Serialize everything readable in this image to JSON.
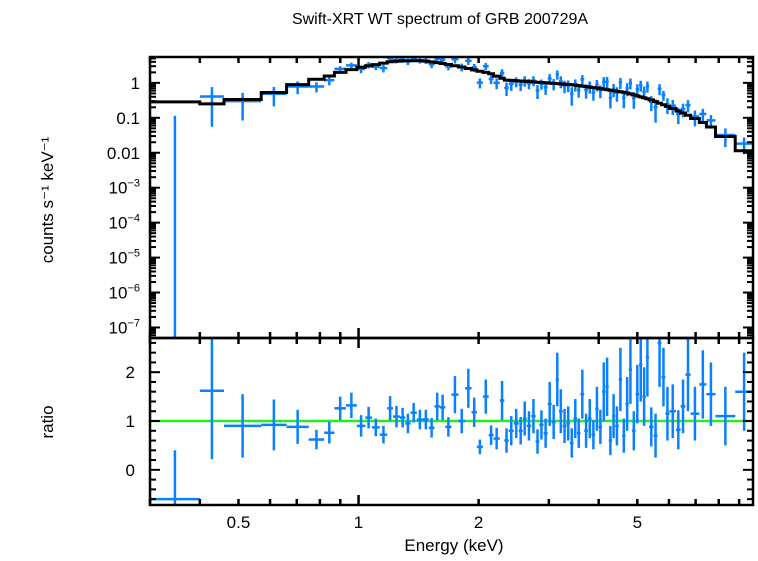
{
  "chart_data": [
    {
      "type": "scatter",
      "panel": "spectrum",
      "title": "Swift-XRT WT spectrum of GRB 200729A",
      "xlabel": "Energy (keV)",
      "ylabel": "counts s⁻¹ keV⁻¹",
      "x_scale": "log",
      "y_scale": "log",
      "xlim": [
        0.3,
        9.75
      ],
      "ylim": [
        5e-08,
        5.5
      ],
      "yticks": [
        {
          "value": 1,
          "base": "1",
          "exp": ""
        },
        {
          "value": 0.1,
          "base": "0.1",
          "exp": ""
        },
        {
          "value": 0.01,
          "base": "0.01",
          "exp": ""
        },
        {
          "value": 0.001,
          "base": "10",
          "exp": "−3"
        },
        {
          "value": 0.0001,
          "base": "10",
          "exp": "−4"
        },
        {
          "value": 1e-05,
          "base": "10",
          "exp": "−5"
        },
        {
          "value": 1e-06,
          "base": "10",
          "exp": "−6"
        },
        {
          "value": 1e-07,
          "base": "10",
          "exp": "−7"
        }
      ],
      "series_colors": {
        "data": "#0a80ff",
        "model": "#000000"
      },
      "model_curve": [
        [
          0.3,
          0.29
        ],
        [
          0.4,
          0.28
        ],
        [
          0.43,
          0.25
        ],
        [
          0.51,
          0.33
        ],
        [
          0.61,
          0.52
        ],
        [
          0.7,
          0.88
        ],
        [
          0.79,
          1.3
        ],
        [
          0.85,
          1.6
        ],
        [
          0.9,
          2.0
        ],
        [
          0.96,
          2.4
        ],
        [
          1.0,
          2.7
        ],
        [
          1.1,
          3.3
        ],
        [
          1.2,
          4.0
        ],
        [
          1.3,
          4.3
        ],
        [
          1.45,
          4.3
        ],
        [
          1.6,
          3.7
        ],
        [
          1.8,
          2.9
        ],
        [
          2.0,
          2.2
        ],
        [
          2.13,
          1.9
        ],
        [
          2.35,
          1.2
        ],
        [
          2.8,
          1.05
        ],
        [
          3.45,
          0.88
        ],
        [
          4.0,
          0.7
        ],
        [
          4.7,
          0.52
        ],
        [
          5.4,
          0.33
        ],
        [
          6.1,
          0.19
        ],
        [
          6.8,
          0.11
        ],
        [
          7.5,
          0.063
        ],
        [
          8.4,
          0.027
        ],
        [
          9.3,
          0.011
        ],
        [
          9.75,
          0.009
        ]
      ]
    },
    {
      "type": "scatter",
      "panel": "ratio",
      "xlabel": "Energy (keV)",
      "ylabel": "ratio",
      "x_scale": "log",
      "xlim": [
        0.3,
        9.75
      ],
      "ylim": [
        -0.72,
        2.7
      ],
      "xticks": [
        {
          "value": 0.5,
          "label": "0.5"
        },
        {
          "value": 1,
          "label": "1"
        },
        {
          "value": 2,
          "label": "2"
        },
        {
          "value": 5,
          "label": "5"
        }
      ],
      "yticks": [
        {
          "value": 0,
          "label": "0"
        },
        {
          "value": 1,
          "label": "1"
        },
        {
          "value": 2,
          "label": "2"
        }
      ],
      "reference_line": {
        "value": 1,
        "color": "#22ee22"
      },
      "bins_columns": [
        "e_lo_keV",
        "e_hi_keV",
        "ratio",
        "ratio_err"
      ],
      "bins": [
        [
          0.3,
          0.4,
          -0.6,
          1.0
        ],
        [
          0.4,
          0.46,
          1.62,
          1.4
        ],
        [
          0.46,
          0.57,
          0.9,
          0.65
        ],
        [
          0.57,
          0.66,
          0.92,
          0.52
        ],
        [
          0.66,
          0.75,
          0.88,
          0.35
        ],
        [
          0.75,
          0.82,
          0.62,
          0.2
        ],
        [
          0.82,
          0.87,
          0.76,
          0.22
        ],
        [
          0.87,
          0.93,
          1.26,
          0.24
        ],
        [
          0.93,
          0.99,
          1.32,
          0.26
        ],
        [
          0.99,
          1.04,
          0.9,
          0.22
        ],
        [
          1.04,
          1.08,
          1.07,
          0.22
        ],
        [
          1.08,
          1.13,
          0.87,
          0.18
        ],
        [
          1.13,
          1.18,
          0.72,
          0.18
        ],
        [
          1.18,
          1.22,
          1.26,
          0.25
        ],
        [
          1.22,
          1.27,
          1.09,
          0.22
        ],
        [
          1.27,
          1.31,
          1.07,
          0.2
        ],
        [
          1.31,
          1.35,
          0.95,
          0.2
        ],
        [
          1.35,
          1.4,
          1.17,
          0.2
        ],
        [
          1.4,
          1.45,
          1.03,
          0.2
        ],
        [
          1.45,
          1.5,
          1.03,
          0.2
        ],
        [
          1.5,
          1.55,
          0.86,
          0.2
        ],
        [
          1.55,
          1.6,
          1.3,
          0.28
        ],
        [
          1.6,
          1.65,
          1.28,
          0.26
        ],
        [
          1.65,
          1.71,
          0.88,
          0.2
        ],
        [
          1.71,
          1.78,
          1.54,
          0.38
        ],
        [
          1.78,
          1.85,
          1.0,
          0.25
        ],
        [
          1.85,
          1.92,
          1.67,
          0.4
        ],
        [
          1.92,
          1.98,
          1.18,
          0.3
        ],
        [
          1.98,
          2.05,
          0.47,
          0.15
        ],
        [
          2.05,
          2.12,
          1.5,
          0.35
        ],
        [
          2.12,
          2.18,
          0.71,
          0.2
        ],
        [
          2.18,
          2.26,
          0.64,
          0.22
        ],
        [
          2.26,
          2.32,
          1.42,
          0.4
        ],
        [
          2.32,
          2.38,
          0.6,
          0.25
        ],
        [
          2.38,
          2.45,
          0.8,
          0.3
        ],
        [
          2.45,
          2.52,
          0.95,
          0.3
        ],
        [
          2.52,
          2.58,
          0.8,
          0.28
        ],
        [
          2.58,
          2.64,
          1.05,
          0.35
        ],
        [
          2.64,
          2.71,
          0.9,
          0.3
        ],
        [
          2.71,
          2.78,
          1.1,
          0.35
        ],
        [
          2.78,
          2.84,
          0.58,
          0.25
        ],
        [
          2.84,
          2.91,
          0.92,
          0.3
        ],
        [
          2.91,
          2.98,
          0.75,
          0.3
        ],
        [
          2.98,
          3.05,
          1.35,
          0.45
        ],
        [
          3.05,
          3.12,
          0.98,
          0.35
        ],
        [
          3.12,
          3.18,
          1.85,
          0.55
        ],
        [
          3.18,
          3.25,
          1.2,
          0.45
        ],
        [
          3.25,
          3.32,
          0.9,
          0.35
        ],
        [
          3.32,
          3.39,
          0.95,
          0.35
        ],
        [
          3.39,
          3.46,
          0.55,
          0.3
        ],
        [
          3.46,
          3.53,
          1.05,
          0.4
        ],
        [
          3.53,
          3.6,
          0.75,
          0.3
        ],
        [
          3.6,
          3.68,
          1.55,
          0.5
        ],
        [
          3.68,
          3.76,
          0.8,
          0.35
        ],
        [
          3.76,
          3.84,
          1.05,
          0.4
        ],
        [
          3.84,
          3.92,
          0.72,
          0.3
        ],
        [
          3.92,
          4.0,
          1.25,
          0.45
        ],
        [
          4.0,
          4.08,
          0.88,
          0.35
        ],
        [
          4.08,
          4.16,
          1.6,
          0.6
        ],
        [
          4.16,
          4.24,
          1.7,
          0.6
        ],
        [
          4.24,
          4.32,
          0.6,
          0.3
        ],
        [
          4.32,
          4.4,
          1.1,
          0.45
        ],
        [
          4.4,
          4.49,
          0.9,
          0.4
        ],
        [
          4.49,
          4.58,
          1.85,
          0.65
        ],
        [
          4.58,
          4.67,
          0.7,
          0.35
        ],
        [
          4.67,
          4.76,
          1.35,
          0.55
        ],
        [
          4.76,
          4.85,
          2.05,
          0.7
        ],
        [
          4.85,
          4.95,
          0.8,
          0.4
        ],
        [
          4.95,
          5.05,
          1.55,
          0.6
        ],
        [
          5.05,
          5.15,
          2.15,
          0.75
        ],
        [
          5.15,
          5.25,
          1.5,
          0.6
        ],
        [
          5.25,
          5.35,
          2.3,
          0.8
        ],
        [
          5.35,
          5.49,
          0.88,
          0.4
        ],
        [
          5.49,
          5.62,
          0.7,
          0.45
        ],
        [
          5.62,
          5.75,
          2.6,
          0.9
        ],
        [
          5.75,
          5.88,
          1.9,
          0.6
        ],
        [
          5.88,
          6.02,
          1.15,
          0.55
        ],
        [
          6.02,
          6.25,
          1.2,
          0.55
        ],
        [
          6.25,
          6.42,
          0.82,
          0.4
        ],
        [
          6.42,
          6.6,
          1.3,
          0.55
        ],
        [
          6.6,
          6.8,
          1.95,
          0.75
        ],
        [
          6.8,
          7.15,
          1.15,
          0.55
        ],
        [
          7.15,
          7.45,
          1.75,
          0.7
        ],
        [
          7.45,
          7.85,
          1.55,
          0.65
        ],
        [
          7.85,
          8.8,
          1.1,
          0.6
        ],
        [
          8.8,
          9.75,
          1.6,
          0.8
        ]
      ]
    }
  ]
}
